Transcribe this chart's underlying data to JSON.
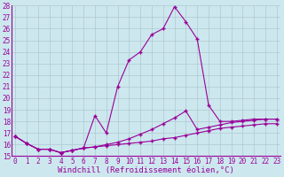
{
  "x": [
    0,
    1,
    2,
    3,
    4,
    5,
    6,
    7,
    8,
    9,
    10,
    11,
    12,
    13,
    14,
    15,
    16,
    17,
    18,
    19,
    20,
    21,
    22,
    23
  ],
  "line1": [
    16.7,
    16.1,
    15.6,
    15.6,
    15.3,
    15.5,
    15.7,
    15.8,
    15.9,
    16.0,
    16.1,
    16.2,
    16.3,
    16.5,
    16.6,
    16.8,
    17.0,
    17.2,
    17.4,
    17.5,
    17.6,
    17.7,
    17.8,
    17.8
  ],
  "line2": [
    16.7,
    16.1,
    15.6,
    15.6,
    15.3,
    15.5,
    15.7,
    15.8,
    16.0,
    16.2,
    16.5,
    16.9,
    17.3,
    17.8,
    18.3,
    18.9,
    17.3,
    17.5,
    17.7,
    17.9,
    18.0,
    18.1,
    18.2,
    18.2
  ],
  "line3": [
    16.7,
    16.1,
    15.6,
    15.6,
    15.3,
    15.5,
    15.7,
    18.5,
    17.0,
    21.0,
    23.3,
    24.0,
    25.5,
    26.0,
    27.9,
    26.6,
    25.1,
    19.4,
    18.0,
    18.0,
    18.1,
    18.2,
    18.2,
    18.2
  ],
  "line_color": "#990099",
  "bg_color": "#cce8ee",
  "grid_color": "#b0c8d0",
  "ylim": [
    15,
    28
  ],
  "yticks": [
    15,
    16,
    17,
    18,
    19,
    20,
    21,
    22,
    23,
    24,
    25,
    26,
    27,
    28
  ],
  "xticks": [
    0,
    1,
    2,
    3,
    4,
    5,
    6,
    7,
    8,
    9,
    10,
    11,
    12,
    13,
    14,
    15,
    16,
    17,
    18,
    19,
    20,
    21,
    22,
    23
  ],
  "xlabel": "Windchill (Refroidissement éolien,°C)",
  "xlabel_fontsize": 6.5,
  "tick_fontsize": 5.5
}
